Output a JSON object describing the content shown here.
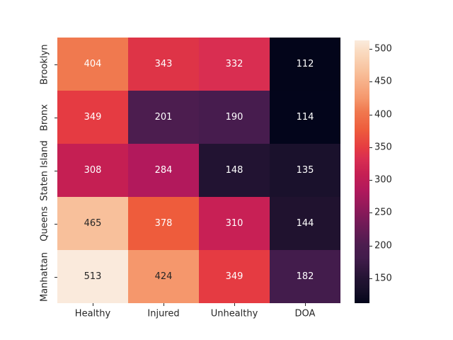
{
  "figure": {
    "background": "#ffffff",
    "tick_color": "#262626",
    "label_color": "#262626"
  },
  "chart_data": {
    "type": "heatmap",
    "title": "",
    "xlabel": "",
    "ylabel": "",
    "rows": [
      "Brooklyn",
      "Bronx",
      "Staten Island",
      "Queens",
      "Manhattan"
    ],
    "columns": [
      "Healthy",
      "Injured",
      "Unhealthy",
      "DOA"
    ],
    "values": [
      [
        404,
        343,
        332,
        112
      ],
      [
        349,
        201,
        190,
        114
      ],
      [
        308,
        284,
        148,
        135
      ],
      [
        465,
        378,
        310,
        144
      ],
      [
        513,
        424,
        349,
        182
      ]
    ],
    "cell_colors": [
      [
        "#f0794f",
        "#de3447",
        "#d92e51",
        "#03051a"
      ],
      [
        "#e53b42",
        "#4c1d4f",
        "#471c4e",
        "#03051b"
      ],
      [
        "#c51f53",
        "#b2195c",
        "#221332",
        "#1a112c"
      ],
      [
        "#f8c09b",
        "#ee5c3c",
        "#c82055",
        "#20122f"
      ],
      [
        "#faeadc",
        "#f5976c",
        "#e53b42",
        "#431c4c"
      ]
    ],
    "text_colors": [
      [
        "#ffffff",
        "#ffffff",
        "#ffffff",
        "#ffffff"
      ],
      [
        "#ffffff",
        "#ffffff",
        "#ffffff",
        "#ffffff"
      ],
      [
        "#ffffff",
        "#ffffff",
        "#ffffff",
        "#ffffff"
      ],
      [
        "#262626",
        "#ffffff",
        "#ffffff",
        "#ffffff"
      ],
      [
        "#262626",
        "#262626",
        "#ffffff",
        "#ffffff"
      ]
    ],
    "colormap": "rocket",
    "vmin": 112,
    "vmax": 513,
    "grid": false,
    "legend_position": "right-colorbar",
    "colorbar": {
      "ticks": [
        150,
        200,
        250,
        300,
        350,
        400,
        450,
        500
      ],
      "gradient": [
        {
          "pos": 0.0,
          "color": "#03051a"
        },
        {
          "pos": 0.06,
          "color": "#1a112c"
        },
        {
          "pos": 0.09,
          "color": "#221332"
        },
        {
          "pos": 0.175,
          "color": "#431c4c"
        },
        {
          "pos": 0.22,
          "color": "#4c1d4f"
        },
        {
          "pos": 0.3,
          "color": "#711b57"
        },
        {
          "pos": 0.36,
          "color": "#8f1a5a"
        },
        {
          "pos": 0.43,
          "color": "#b2195c"
        },
        {
          "pos": 0.49,
          "color": "#c51f53"
        },
        {
          "pos": 0.55,
          "color": "#d92e51"
        },
        {
          "pos": 0.59,
          "color": "#e53b42"
        },
        {
          "pos": 0.66,
          "color": "#ee5c3c"
        },
        {
          "pos": 0.73,
          "color": "#f0794f"
        },
        {
          "pos": 0.78,
          "color": "#f5976c"
        },
        {
          "pos": 0.88,
          "color": "#f8c09b"
        },
        {
          "pos": 0.96,
          "color": "#fadcc2"
        },
        {
          "pos": 1.0,
          "color": "#faebdd"
        }
      ]
    }
  }
}
